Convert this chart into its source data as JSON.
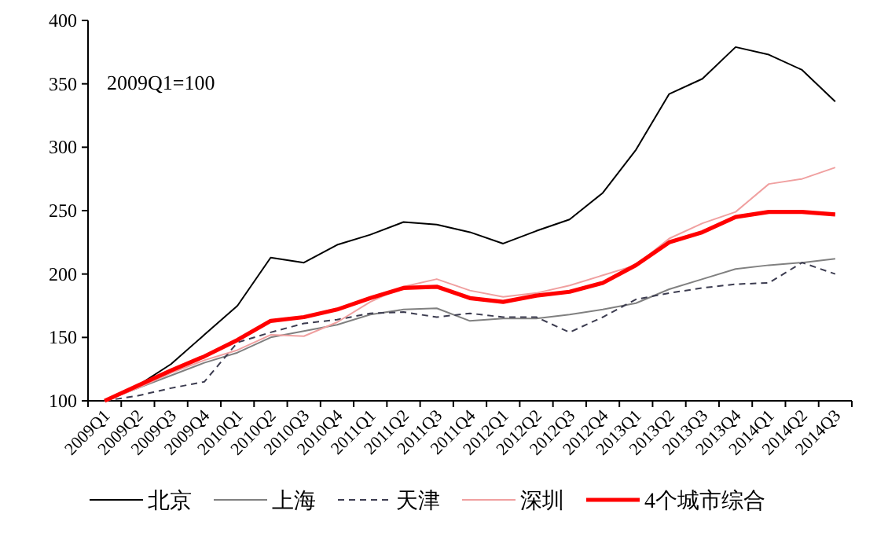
{
  "chart_data": {
    "type": "line",
    "annotations": [
      "2009Q1=100"
    ],
    "categories": [
      "2009Q1",
      "2009Q2",
      "2009Q3",
      "2009Q4",
      "2010Q1",
      "2010Q2",
      "2010Q3",
      "2010Q4",
      "2011Q1",
      "2011Q2",
      "2011Q3",
      "2011Q4",
      "2012Q1",
      "2012Q2",
      "2012Q3",
      "2012Q4",
      "2013Q1",
      "2013Q2",
      "2013Q3",
      "2013Q4",
      "2014Q1",
      "2014Q2",
      "2014Q3"
    ],
    "series": [
      {
        "name": "北京",
        "color": "#000000",
        "values": [
          100,
          112,
          129,
          152,
          175,
          213,
          209,
          223,
          231,
          241,
          239,
          233,
          224,
          234,
          243,
          264,
          298,
          342,
          354,
          379,
          373,
          361,
          336
        ]
      },
      {
        "name": "上海",
        "color": "#808080",
        "values": [
          100,
          110,
          120,
          130,
          138,
          150,
          155,
          160,
          168,
          172,
          173,
          163,
          165,
          165,
          168,
          172,
          177,
          188,
          196,
          204,
          207,
          209,
          212
        ]
      },
      {
        "name": "天津",
        "color": "#3c3c50",
        "line_style": "dashed",
        "values": [
          100,
          104,
          110,
          115,
          146,
          154,
          161,
          164,
          169,
          170,
          166,
          169,
          166,
          166,
          154,
          166,
          180,
          185,
          189,
          192,
          193,
          209,
          200
        ]
      },
      {
        "name": "深圳",
        "color": "#f0a0a0",
        "values": [
          100,
          110,
          122,
          132,
          140,
          152,
          151,
          162,
          178,
          190,
          196,
          187,
          182,
          185,
          191,
          199,
          207,
          228,
          240,
          249,
          271,
          275,
          284
        ]
      },
      {
        "name": "4个城市综合",
        "color": "#ff0000",
        "values": [
          100,
          112,
          124,
          135,
          148,
          163,
          166,
          172,
          181,
          189,
          190,
          181,
          178,
          183,
          186,
          193,
          207,
          225,
          233,
          245,
          249,
          249,
          247
        ]
      }
    ],
    "ylim": [
      100,
      400
    ],
    "yticks": [
      100,
      150,
      200,
      250,
      300,
      350,
      400
    ],
    "grid": false,
    "legend": "bottom",
    "marker": "none",
    "line_style": "solid"
  }
}
